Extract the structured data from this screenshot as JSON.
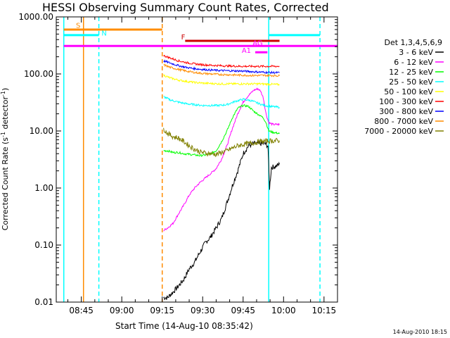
{
  "chart_data": {
    "type": "line",
    "title": "HESSI Observing Summary Count Rates, Corrected",
    "xlabel": "Start Time (14-Aug-10 08:35:42)",
    "ylabel": "Corrected Count Rate (s",
    "ylabel_sup1": "-1",
    "ylabel_mid": " detector",
    "ylabel_sup2": "-1",
    "ylabel_end": ")",
    "timestamp": "14-Aug-2010 18:15",
    "yscale": "log",
    "ylim": [
      0.01,
      1000
    ],
    "xlim_min": [
      35.7,
      140
    ],
    "yticks": [
      {
        "v": 0.01,
        "label": "0.01"
      },
      {
        "v": 0.1,
        "label": "0.10"
      },
      {
        "v": 1,
        "label": "1.00"
      },
      {
        "v": 10,
        "label": "10.00"
      },
      {
        "v": 100,
        "label": "100.00"
      },
      {
        "v": 1000,
        "label": "1000.00"
      }
    ],
    "xticks": [
      {
        "v": 45,
        "label": "08:45"
      },
      {
        "v": 60,
        "label": "09:00"
      },
      {
        "v": 75,
        "label": "09:15"
      },
      {
        "v": 90,
        "label": "09:30"
      },
      {
        "v": 105,
        "label": "09:45"
      },
      {
        "v": 120,
        "label": "10:00"
      },
      {
        "v": 135,
        "label": "10:15"
      }
    ],
    "legend_title": "Det 1,3,4,5,6,9",
    "series": [
      {
        "name": "3 - 6 keV",
        "color": "#000000",
        "points": [
          [
            75.5,
            0.012
          ],
          [
            77,
            0.012
          ],
          [
            79,
            0.015
          ],
          [
            81,
            0.019
          ],
          [
            83,
            0.025
          ],
          [
            85,
            0.038
          ],
          [
            87,
            0.05
          ],
          [
            89,
            0.075
          ],
          [
            91,
            0.11
          ],
          [
            93,
            0.14
          ],
          [
            95,
            0.2
          ],
          [
            97,
            0.29
          ],
          [
            99,
            0.55
          ],
          [
            101,
            1.1
          ],
          [
            103,
            2.0
          ],
          [
            105,
            4.0
          ],
          [
            107,
            5.5
          ],
          [
            109,
            6.0
          ],
          [
            111,
            6.0
          ],
          [
            113,
            6.0
          ],
          [
            114.2,
            5.5
          ],
          [
            114.8,
            1.0
          ],
          [
            115.5,
            2.3
          ],
          [
            117,
            2.4
          ],
          [
            118.5,
            2.6
          ]
        ]
      },
      {
        "name": "6 - 12 keV",
        "color": "#ff00ff",
        "points": [
          [
            75.5,
            0.18
          ],
          [
            77,
            0.2
          ],
          [
            79,
            0.24
          ],
          [
            81,
            0.35
          ],
          [
            83,
            0.5
          ],
          [
            85,
            0.75
          ],
          [
            87,
            1.0
          ],
          [
            89,
            1.25
          ],
          [
            91,
            1.5
          ],
          [
            93,
            1.8
          ],
          [
            95,
            2.2
          ],
          [
            97,
            3.2
          ],
          [
            99,
            5.5
          ],
          [
            101,
            11
          ],
          [
            103,
            20
          ],
          [
            105,
            32
          ],
          [
            107,
            42
          ],
          [
            109,
            52
          ],
          [
            110.5,
            55
          ],
          [
            111.5,
            50
          ],
          [
            112.5,
            38
          ],
          [
            113.5,
            20
          ],
          [
            114.5,
            14
          ],
          [
            116,
            13
          ],
          [
            118.5,
            13
          ]
        ]
      },
      {
        "name": "12 - 25 keV",
        "color": "#00ff00",
        "points": [
          [
            75.5,
            4.5
          ],
          [
            77,
            4.5
          ],
          [
            79,
            4.2
          ],
          [
            81,
            4.2
          ],
          [
            83,
            4.0
          ],
          [
            85,
            3.9
          ],
          [
            87,
            3.8
          ],
          [
            89,
            3.7
          ],
          [
            91,
            3.8
          ],
          [
            93,
            4.0
          ],
          [
            95,
            4.5
          ],
          [
            97,
            6.5
          ],
          [
            99,
            10
          ],
          [
            101,
            17
          ],
          [
            103,
            25
          ],
          [
            105,
            28
          ],
          [
            107,
            27
          ],
          [
            109,
            22
          ],
          [
            111,
            19
          ],
          [
            112.5,
            17
          ],
          [
            113.5,
            14
          ],
          [
            114.5,
            10
          ],
          [
            116,
            9.5
          ],
          [
            118.5,
            9
          ]
        ]
      },
      {
        "name": "25 - 50 keV",
        "color": "#00ffff",
        "points": [
          [
            75.5,
            40
          ],
          [
            78,
            35
          ],
          [
            81,
            32
          ],
          [
            84,
            30
          ],
          [
            87,
            29
          ],
          [
            90,
            28
          ],
          [
            93,
            28
          ],
          [
            96,
            28
          ],
          [
            99,
            29
          ],
          [
            102,
            33
          ],
          [
            105,
            36
          ],
          [
            108,
            34
          ],
          [
            111,
            30
          ],
          [
            113,
            28
          ],
          [
            115,
            27
          ],
          [
            118.5,
            26
          ]
        ]
      },
      {
        "name": "50 - 100 keV",
        "color": "#ffff00",
        "points": [
          [
            75.5,
            95
          ],
          [
            78,
            85
          ],
          [
            81,
            78
          ],
          [
            84,
            74
          ],
          [
            87,
            71
          ],
          [
            90,
            69
          ],
          [
            93,
            68
          ],
          [
            96,
            67
          ],
          [
            99,
            67
          ],
          [
            102,
            67
          ],
          [
            105,
            67
          ],
          [
            108,
            67
          ],
          [
            111,
            67
          ],
          [
            115,
            66
          ],
          [
            118.5,
            65
          ]
        ]
      },
      {
        "name": "100 - 300 keV",
        "color": "#ff0000",
        "points": [
          [
            75.5,
            210
          ],
          [
            78,
            190
          ],
          [
            81,
            170
          ],
          [
            84,
            158
          ],
          [
            87,
            150
          ],
          [
            90,
            145
          ],
          [
            93,
            142
          ],
          [
            96,
            140
          ],
          [
            99,
            138
          ],
          [
            102,
            137
          ],
          [
            105,
            136
          ],
          [
            108,
            136
          ],
          [
            111,
            136
          ],
          [
            115,
            136
          ],
          [
            118.5,
            136
          ]
        ]
      },
      {
        "name": "300 - 800 keV",
        "color": "#0000ff",
        "points": [
          [
            75.5,
            170
          ],
          [
            78,
            155
          ],
          [
            81,
            140
          ],
          [
            84,
            130
          ],
          [
            87,
            124
          ],
          [
            90,
            120
          ],
          [
            93,
            117
          ],
          [
            96,
            115
          ],
          [
            99,
            114
          ],
          [
            102,
            113
          ],
          [
            105,
            112
          ],
          [
            108,
            110
          ],
          [
            111,
            108
          ],
          [
            115,
            106
          ],
          [
            118.5,
            105
          ]
        ]
      },
      {
        "name": "800 - 7000 keV",
        "color": "#ff8c00",
        "points": [
          [
            75.5,
            145
          ],
          [
            78,
            130
          ],
          [
            81,
            120
          ],
          [
            84,
            112
          ],
          [
            87,
            106
          ],
          [
            90,
            102
          ],
          [
            93,
            100
          ],
          [
            96,
            98
          ],
          [
            99,
            97
          ],
          [
            102,
            96
          ],
          [
            105,
            95
          ],
          [
            108,
            94
          ],
          [
            111,
            94
          ],
          [
            115,
            94
          ],
          [
            118.5,
            93
          ]
        ]
      },
      {
        "name": "7000 - 20000 keV",
        "color": "#808000",
        "points": [
          [
            75.5,
            11
          ],
          [
            77,
            9
          ],
          [
            79,
            8
          ],
          [
            81,
            7.5
          ],
          [
            83,
            6.5
          ],
          [
            85,
            5.5
          ],
          [
            87,
            4.8
          ],
          [
            89,
            4.3
          ],
          [
            91,
            4.1
          ],
          [
            93,
            4.0
          ],
          [
            95,
            3.9
          ],
          [
            97,
            4.2
          ],
          [
            99,
            4.5
          ],
          [
            101,
            5.0
          ],
          [
            103,
            5.5
          ],
          [
            105,
            5.8
          ],
          [
            107,
            6.0
          ],
          [
            109,
            6.2
          ],
          [
            111,
            6.5
          ],
          [
            113,
            6.6
          ],
          [
            115,
            6.7
          ],
          [
            118.5,
            6.8
          ]
        ]
      }
    ],
    "vlines": [
      {
        "t": 38.5,
        "color": "#00ffff",
        "dash": false
      },
      {
        "t": 45.8,
        "color": "#ff8c00",
        "dash": false
      },
      {
        "t": 51.5,
        "color": "#00ffff",
        "dash": true
      },
      {
        "t": 75.0,
        "color": "#ff8c00",
        "dash": true
      },
      {
        "t": 114.5,
        "color": "#00ffff",
        "dash": false
      },
      {
        "t": 133.5,
        "color": "#00ffff",
        "dash": true
      }
    ],
    "flags": [
      {
        "label": "S",
        "color": "#ff8c00",
        "y": 600,
        "t0": 38.5,
        "t1": 75.0,
        "label_t": 43.0,
        "label_y": 640
      },
      {
        "label": "N",
        "color": "#00ffff",
        "y": 480,
        "t0": 38.5,
        "t1": 51.5,
        "label_t": 52.5,
        "label_y": 470
      },
      {
        "label": "N",
        "color": "#00ffff",
        "y": 480,
        "t0": 114.5,
        "t1": 133.5,
        "label_t": null,
        "label_y": null
      },
      {
        "label": "F",
        "color": "#cc0000",
        "y": 380,
        "t0": 83.5,
        "t1": 118.5,
        "label_t": 82.0,
        "label_y": 400
      },
      {
        "label": "AG",
        "color": "#ff00ff",
        "y": 310,
        "t0": 38.5,
        "t1": 140.0,
        "label_t": 108.5,
        "label_y": 318
      },
      {
        "label": "A1",
        "color": "#ff00ff",
        "y": 240,
        "t0": 109.5,
        "t1": 114.0,
        "label_t": 104.5,
        "label_y": 235
      }
    ]
  }
}
